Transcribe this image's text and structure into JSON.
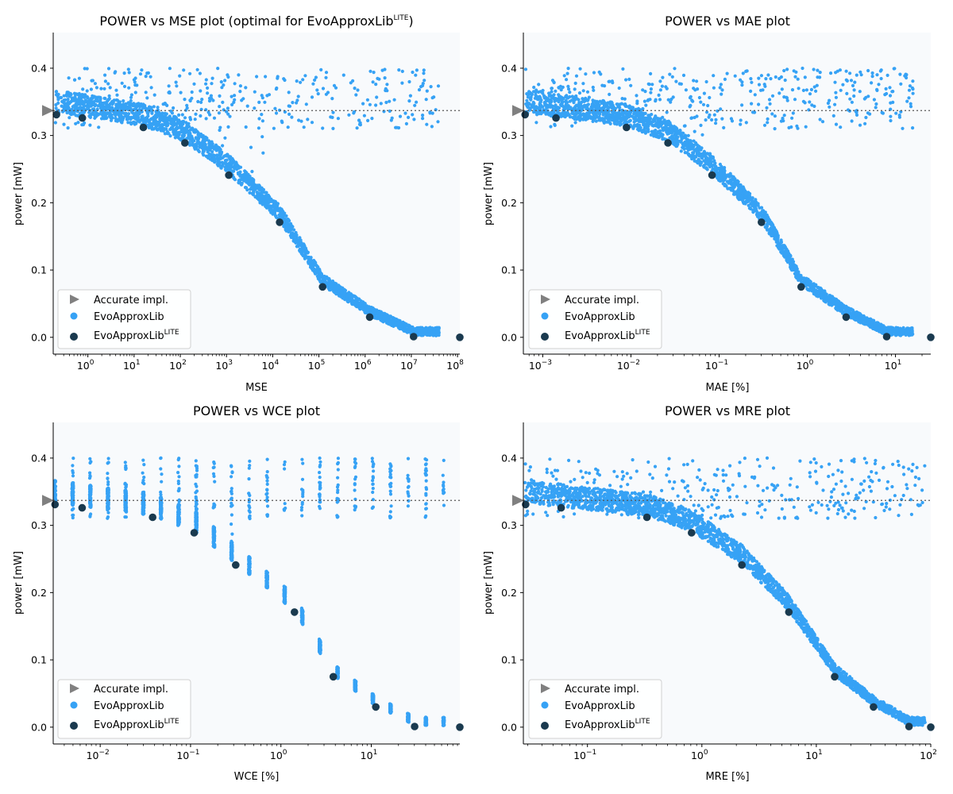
{
  "figure": {
    "background": "#ffffff",
    "plot_background": "#f8fafc"
  },
  "colors": {
    "evo": "#36a2f5",
    "lite": "#1a3a4f",
    "accurate": "#808080",
    "refline": "#555555"
  },
  "legend": {
    "accurate": "Accurate impl.",
    "evo": "EvoApproxLib",
    "lite_base": "EvoApproxLib",
    "lite_sup": "LITE"
  },
  "chart_data": [
    {
      "type": "scatter",
      "id": "mse",
      "title_parts": [
        {
          "text": "POWER vs MSE plot (optimal for EvoApproxLib",
          "sup": false
        },
        {
          "text": "LITE",
          "sup": true
        },
        {
          "text": ")",
          "sup": false
        }
      ],
      "xlabel": "MSE",
      "ylabel": "power [mW]",
      "xscale": "log",
      "xlim_log10": [
        -0.75,
        8.05
      ],
      "ylim": [
        -0.025,
        0.453
      ],
      "xticks": [
        {
          "base": "10",
          "exp": "0",
          "log": 0
        },
        {
          "base": "10",
          "exp": "1",
          "log": 1
        },
        {
          "base": "10",
          "exp": "2",
          "log": 2
        },
        {
          "base": "10",
          "exp": "3",
          "log": 3
        },
        {
          "base": "10",
          "exp": "4",
          "log": 4
        },
        {
          "base": "10",
          "exp": "5",
          "log": 5
        },
        {
          "base": "10",
          "exp": "6",
          "log": 6
        },
        {
          "base": "10",
          "exp": "7",
          "log": 7
        },
        {
          "base": "10",
          "exp": "8",
          "log": 8
        }
      ],
      "yticks": [
        "0.0",
        "0.1",
        "0.2",
        "0.3",
        "0.4"
      ],
      "accurate_power": 0.337,
      "lite_points": [
        [
          -0.68,
          0.331
        ],
        [
          -0.12,
          0.326
        ],
        [
          1.2,
          0.312
        ],
        [
          2.1,
          0.289
        ],
        [
          3.05,
          0.241
        ],
        [
          4.15,
          0.171
        ],
        [
          5.08,
          0.075
        ],
        [
          6.1,
          0.03
        ],
        [
          7.05,
          0.001
        ],
        [
          8.05,
          0.0
        ]
      ],
      "evo_cloud": {
        "seed": 11,
        "count": 2600,
        "bands": 8,
        "xmin_log": -0.7,
        "xmax_log": 7.6
      }
    },
    {
      "type": "scatter",
      "id": "mae",
      "title_parts": [
        {
          "text": "POWER vs MAE plot",
          "sup": false
        }
      ],
      "xlabel": "MAE [%]",
      "ylabel": "power [mW]",
      "xscale": "log",
      "xlim_log10": [
        -3.22,
        1.4
      ],
      "ylim": [
        -0.025,
        0.453
      ],
      "xticks": [
        {
          "base": "10",
          "exp": "−3",
          "log": -3
        },
        {
          "base": "10",
          "exp": "−2",
          "log": -2
        },
        {
          "base": "10",
          "exp": "−1",
          "log": -1
        },
        {
          "base": "10",
          "exp": "0",
          "log": 0
        },
        {
          "base": "10",
          "exp": "1",
          "log": 1
        }
      ],
      "yticks": [
        "0.0",
        "0.1",
        "0.2",
        "0.3",
        "0.4"
      ],
      "accurate_power": 0.337,
      "lite_points": [
        [
          -3.2,
          0.331
        ],
        [
          -2.85,
          0.326
        ],
        [
          -2.05,
          0.312
        ],
        [
          -1.58,
          0.289
        ],
        [
          -1.08,
          0.241
        ],
        [
          -0.52,
          0.171
        ],
        [
          -0.07,
          0.075
        ],
        [
          0.44,
          0.03
        ],
        [
          0.9,
          0.001
        ],
        [
          1.4,
          0.0
        ]
      ],
      "evo_cloud": {
        "seed": 23,
        "count": 2600,
        "bands": 8,
        "xmin_log": -3.2,
        "xmax_log": 1.2
      }
    },
    {
      "type": "scatter",
      "id": "wce",
      "title_parts": [
        {
          "text": "POWER vs WCE plot",
          "sup": false
        }
      ],
      "xlabel": "WCE [%]",
      "ylabel": "power [mW]",
      "xscale": "log",
      "xlim_log10": [
        -2.52,
        1.98
      ],
      "ylim": [
        -0.025,
        0.453
      ],
      "xticks": [
        {
          "base": "10",
          "exp": "−2",
          "log": -2
        },
        {
          "base": "10",
          "exp": "−1",
          "log": -1
        },
        {
          "base": "10",
          "exp": "1",
          "log": 1
        }
      ],
      "xtick_plain": [
        {
          "label": "10",
          "exp": "0",
          "log": 0
        }
      ],
      "yticks": [
        "0.0",
        "0.1",
        "0.2",
        "0.3",
        "0.4"
      ],
      "accurate_power": 0.337,
      "lite_points": [
        [
          -2.5,
          0.331
        ],
        [
          -2.2,
          0.326
        ],
        [
          -1.42,
          0.312
        ],
        [
          -0.96,
          0.289
        ],
        [
          -0.5,
          0.241
        ],
        [
          0.15,
          0.171
        ],
        [
          0.58,
          0.075
        ],
        [
          1.05,
          0.03
        ],
        [
          1.48,
          0.001
        ],
        [
          1.98,
          0.0
        ]
      ],
      "evo_cloud": {
        "seed": 37,
        "count": 2600,
        "bands": 22,
        "xmin_log": -2.5,
        "xmax_log": 1.8
      }
    },
    {
      "type": "scatter",
      "id": "mre",
      "title_parts": [
        {
          "text": "POWER vs MRE plot",
          "sup": false
        }
      ],
      "xlabel": "MRE [%]",
      "ylabel": "power [mW]",
      "xscale": "log",
      "xlim_log10": [
        -1.56,
        2.0
      ],
      "ylim": [
        -0.025,
        0.453
      ],
      "xticks": [
        {
          "base": "10",
          "exp": "−1",
          "log": -1
        },
        {
          "base": "10",
          "exp": "0",
          "log": 0
        },
        {
          "base": "10",
          "exp": "1",
          "log": 1
        },
        {
          "base": "10",
          "exp": "2",
          "log": 2
        }
      ],
      "yticks": [
        "0.0",
        "0.1",
        "0.2",
        "0.3",
        "0.4"
      ],
      "accurate_power": 0.337,
      "lite_points": [
        [
          -1.54,
          0.331
        ],
        [
          -1.23,
          0.326
        ],
        [
          -0.48,
          0.312
        ],
        [
          -0.09,
          0.289
        ],
        [
          0.35,
          0.241
        ],
        [
          0.76,
          0.171
        ],
        [
          1.16,
          0.075
        ],
        [
          1.5,
          0.03
        ],
        [
          1.81,
          0.001
        ],
        [
          2.0,
          0.0
        ]
      ],
      "evo_cloud": {
        "seed": 53,
        "count": 2600,
        "bands": 8,
        "xmin_log": -1.55,
        "xmax_log": 1.95
      }
    }
  ]
}
